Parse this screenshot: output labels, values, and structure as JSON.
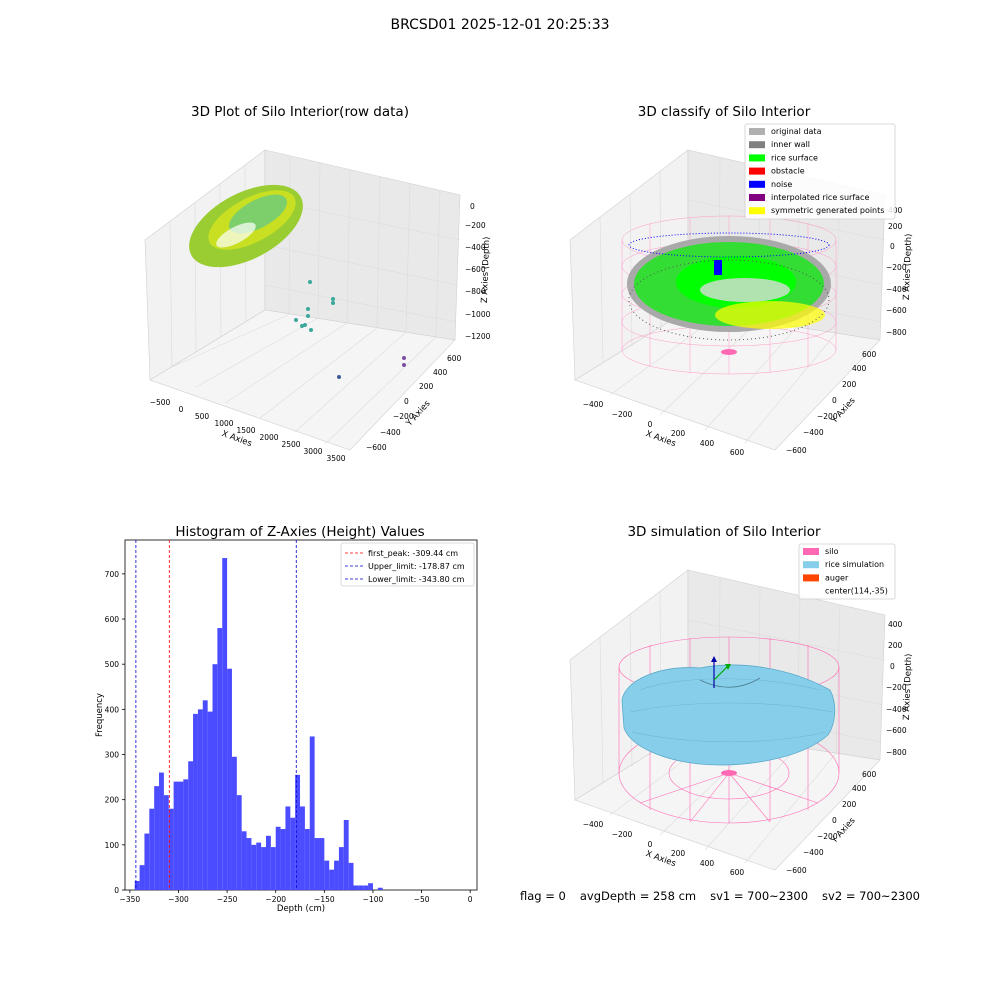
{
  "suptitle": "BRCSD01 2025-12-01 20:25:33",
  "panels": {
    "raw": {
      "title": "3D Plot of Silo Interior(row data)",
      "xlabel": "X Axies",
      "ylabel": "Y Axies",
      "zlabel": "Z Axies (Depth)",
      "xticks": [
        "−500",
        "0",
        "500",
        "1000",
        "1500",
        "2000",
        "2500",
        "3000",
        "3500"
      ],
      "yticks": [
        "−600",
        "−400",
        "−200",
        "0",
        "200",
        "400",
        "600"
      ],
      "zticks": [
        "0",
        "−200",
        "−400",
        "−600",
        "−800",
        "−1000",
        "−1200"
      ]
    },
    "classify": {
      "title": "3D classify of Silo Interior",
      "xlabel": "X Axies",
      "ylabel": "Y Axies",
      "zlabel": "Z Axies (Depth)",
      "xticks": [
        "−400",
        "−200",
        "0",
        "200",
        "400",
        "600"
      ],
      "yticks": [
        "−600",
        "−400",
        "−200",
        "0",
        "200",
        "400",
        "600"
      ],
      "zticks": [
        "400",
        "200",
        "0",
        "−200",
        "−400",
        "−600",
        "−800"
      ],
      "legend": [
        {
          "label": "original data",
          "color": "#b0b0b0"
        },
        {
          "label": "inner wall",
          "color": "#808080"
        },
        {
          "label": "rice surface",
          "color": "#00ff00"
        },
        {
          "label": "obstacle",
          "color": "#ff0000"
        },
        {
          "label": "noise",
          "color": "#0000ff"
        },
        {
          "label": "interpolated rice surface",
          "color": "#800080"
        },
        {
          "label": "symmetric generated points",
          "color": "#ffff00"
        }
      ]
    },
    "simulation": {
      "title": "3D simulation of Silo Interior",
      "xlabel": "X Axies",
      "ylabel": "Y Axies",
      "zlabel": "Z Axies (Depth)",
      "xticks": [
        "−400",
        "−200",
        "0",
        "200",
        "400",
        "600"
      ],
      "yticks": [
        "−600",
        "−400",
        "−200",
        "0",
        "200",
        "400",
        "600"
      ],
      "zticks": [
        "400",
        "200",
        "0",
        "−200",
        "−400",
        "−600",
        "−800"
      ],
      "legend": [
        {
          "label": "silo",
          "color": "#ff69b4"
        },
        {
          "label": "rice simulation",
          "color": "#87ceeb"
        },
        {
          "label": "auger",
          "color": "#ff4500"
        },
        {
          "label": "center(114,-35)",
          "color": ""
        }
      ]
    }
  },
  "footer": {
    "flag": "flag = 0",
    "avg": "avgDepth = 258 cm",
    "sv1": "sv1 = 700~2300",
    "sv2": "sv2 = 700~2300"
  },
  "chart_data": {
    "type": "bar",
    "title": "Histogram of Z-Axies (Height) Values",
    "xlabel": "Depth (cm)",
    "ylabel": "Frequency",
    "xlim": [
      -355,
      7
    ],
    "ylim": [
      0,
      775
    ],
    "xticks": [
      -350,
      -300,
      -250,
      -200,
      -150,
      -100,
      -50,
      0
    ],
    "yticks": [
      0,
      100,
      200,
      300,
      400,
      500,
      600,
      700
    ],
    "bin_start": -345,
    "bin_width": 5,
    "values": [
      20,
      55,
      125,
      180,
      230,
      260,
      210,
      180,
      240,
      240,
      245,
      285,
      390,
      400,
      420,
      395,
      500,
      580,
      735,
      490,
      295,
      210,
      130,
      115,
      100,
      105,
      95,
      120,
      95,
      140,
      135,
      185,
      160,
      255,
      185,
      135,
      340,
      115,
      115,
      65,
      45,
      65,
      95,
      155,
      60,
      10,
      10,
      10,
      15,
      0,
      5
    ],
    "vlines": [
      {
        "label": "first_peak: -309.44 cm",
        "x": -309.44,
        "color": "#ff0000"
      },
      {
        "label": "Upper_limit: -178.87 cm",
        "x": -178.87,
        "color": "#0000cc"
      },
      {
        "label": "Lower_limit: -343.80 cm",
        "x": -343.8,
        "color": "#0000cc"
      }
    ],
    "bar_color": "#4b4bff"
  }
}
